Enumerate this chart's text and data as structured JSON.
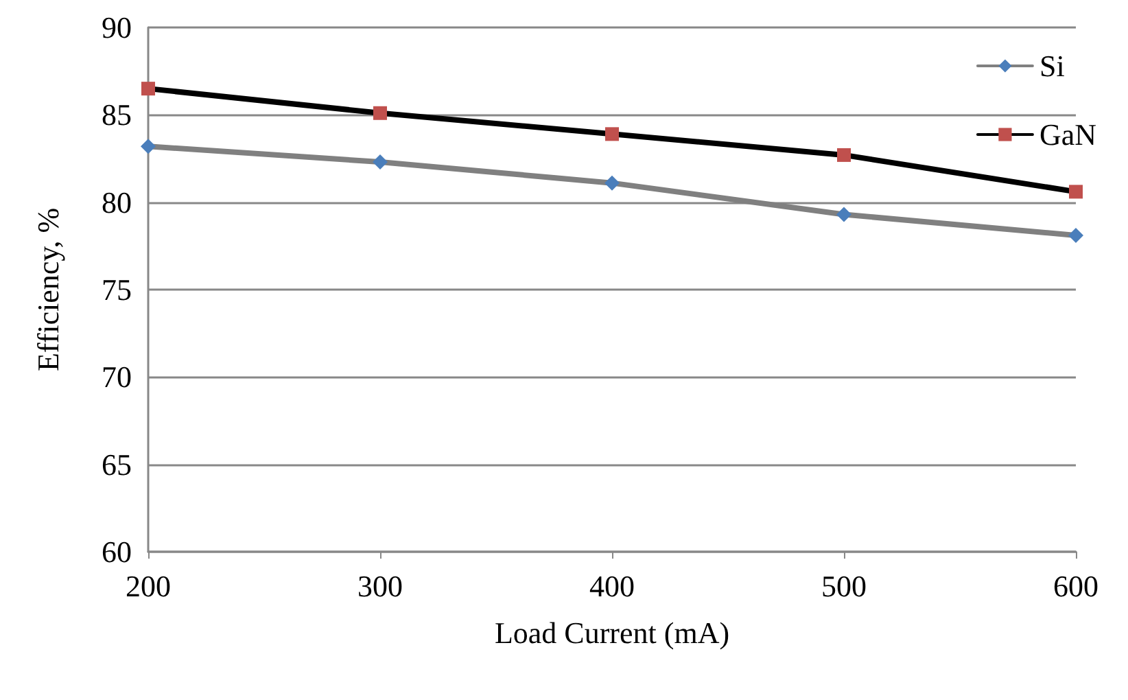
{
  "chart_data": {
    "type": "line",
    "xlabel": "Load Current (mA)",
    "ylabel": "Efficiency, %",
    "x": [
      200,
      300,
      400,
      500,
      600
    ],
    "series": [
      {
        "name": "Si",
        "color": "#808080",
        "colors": [
          "#4a7ebb",
          "#4a7ebb",
          "#4a7ebb",
          "#4a7ebb",
          "#4a7ebb"
        ],
        "marker": "diamond",
        "values": [
          83.2,
          82.3,
          81.1,
          79.3,
          78.1
        ]
      },
      {
        "name": "GaN",
        "color": "#000000",
        "colors": [
          "#c0504d",
          "#c0504d",
          "#c0504d",
          "#c0504d",
          "#c0504d"
        ],
        "marker": "square",
        "values": [
          86.5,
          85.1,
          83.9,
          82.7,
          80.6
        ]
      }
    ],
    "xlim": [
      200,
      600
    ],
    "xticks": [
      200,
      300,
      400,
      500,
      600
    ],
    "ylim": [
      60,
      90
    ],
    "yticks": [
      60,
      65,
      70,
      75,
      80,
      85,
      90
    ],
    "grid": "y",
    "legend": "top right",
    "line_style": "solid"
  }
}
